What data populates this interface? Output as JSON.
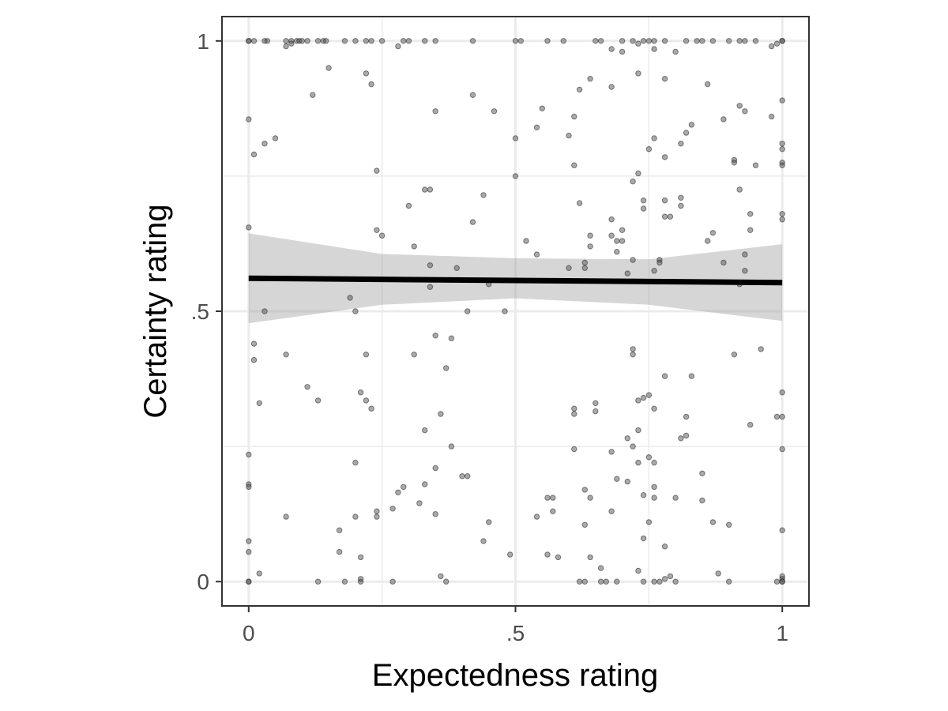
{
  "chart_data": {
    "type": "scatter",
    "title": "",
    "xlabel": "Expectedness rating",
    "ylabel": "Certainty rating",
    "xlim": [
      -0.05,
      1.05
    ],
    "ylim": [
      -0.045,
      1.045
    ],
    "grid": true,
    "x_ticks": [
      {
        "value": 0,
        "label": "0"
      },
      {
        "value": 0.5,
        "label": ".5"
      },
      {
        "value": 1,
        "label": "1"
      }
    ],
    "y_ticks": [
      {
        "value": 0,
        "label": "0"
      },
      {
        "value": 0.5,
        "label": ".5"
      },
      {
        "value": 1,
        "label": "1"
      }
    ],
    "minor_gridlines": {
      "x": [
        0.25,
        0.75
      ],
      "y": [
        0.25,
        0.75
      ]
    },
    "colors": {
      "points": "#555555",
      "trend": "#000000",
      "band": "#999999",
      "grid": "#ebebeb"
    },
    "trend_line": {
      "x": [
        0,
        1
      ],
      "y": [
        0.561,
        0.553
      ]
    },
    "confidence_band": {
      "x": [
        0,
        0.25,
        0.5,
        0.75,
        1
      ],
      "lower": [
        0.478,
        0.512,
        0.524,
        0.512,
        0.482
      ],
      "upper": [
        0.644,
        0.606,
        0.598,
        0.596,
        0.624
      ]
    },
    "points": [
      [
        0,
        1
      ],
      [
        0,
        1
      ],
      [
        0.01,
        1
      ],
      [
        0.03,
        1
      ],
      [
        0.035,
        1
      ],
      [
        0.07,
        1
      ],
      [
        0.08,
        1
      ],
      [
        0.09,
        1
      ],
      [
        0.095,
        1
      ],
      [
        0.1,
        1
      ],
      [
        0.11,
        1
      ],
      [
        0.13,
        1
      ],
      [
        0.14,
        1
      ],
      [
        0.145,
        1
      ],
      [
        0.18,
        1
      ],
      [
        0.2,
        1
      ],
      [
        0.22,
        1
      ],
      [
        0.23,
        1
      ],
      [
        0.25,
        1
      ],
      [
        0.29,
        1
      ],
      [
        0.3,
        1
      ],
      [
        0.33,
        1
      ],
      [
        0.35,
        1
      ],
      [
        0.42,
        1
      ],
      [
        0.5,
        1
      ],
      [
        0.51,
        1
      ],
      [
        0.56,
        1
      ],
      [
        0.59,
        1
      ],
      [
        0.65,
        1
      ],
      [
        0.66,
        1
      ],
      [
        0.7,
        1
      ],
      [
        0.72,
        1
      ],
      [
        0.73,
        0.995
      ],
      [
        0.74,
        1
      ],
      [
        0.75,
        1
      ],
      [
        0.76,
        1
      ],
      [
        0.78,
        1
      ],
      [
        0.82,
        1
      ],
      [
        0.84,
        1
      ],
      [
        0.85,
        1
      ],
      [
        0.87,
        1
      ],
      [
        0.9,
        1
      ],
      [
        0.92,
        1
      ],
      [
        0.93,
        1
      ],
      [
        0.95,
        1
      ],
      [
        0.98,
        0.99
      ],
      [
        1,
        1
      ],
      [
        1,
        1
      ],
      [
        0.07,
        0.99
      ],
      [
        0.08,
        0.995
      ],
      [
        0.28,
        0.99
      ],
      [
        0.68,
        0.985
      ],
      [
        0.7,
        0.98
      ],
      [
        0.76,
        0.985
      ],
      [
        0.8,
        0.98
      ],
      [
        0.99,
        0.995
      ],
      [
        0.15,
        0.95
      ],
      [
        0.22,
        0.94
      ],
      [
        0.23,
        0.92
      ],
      [
        0.12,
        0.9
      ],
      [
        0.73,
        0.94
      ],
      [
        0.78,
        0.93
      ],
      [
        0.64,
        0.93
      ],
      [
        0.62,
        0.91
      ],
      [
        0.68,
        0.915
      ],
      [
        0.86,
        0.92
      ],
      [
        0.42,
        0.9
      ],
      [
        0.35,
        0.87
      ],
      [
        0.46,
        0.87
      ],
      [
        0.55,
        0.875
      ],
      [
        0.61,
        0.86
      ],
      [
        0.0,
        0.855
      ],
      [
        0.89,
        0.855
      ],
      [
        0.92,
        0.88
      ],
      [
        0.93,
        0.87
      ],
      [
        0.98,
        0.86
      ],
      [
        1,
        0.89
      ],
      [
        0.54,
        0.84
      ],
      [
        0.83,
        0.845
      ],
      [
        0.82,
        0.83
      ],
      [
        0.6,
        0.825
      ],
      [
        0.5,
        0.82
      ],
      [
        0.05,
        0.82
      ],
      [
        0.03,
        0.81
      ],
      [
        0.76,
        0.82
      ],
      [
        0.81,
        0.81
      ],
      [
        1,
        0.81
      ],
      [
        1,
        0.8
      ],
      [
        0.01,
        0.79
      ],
      [
        0.75,
        0.8
      ],
      [
        0.78,
        0.785
      ],
      [
        0.91,
        0.78
      ],
      [
        0.91,
        0.775
      ],
      [
        0.61,
        0.77
      ],
      [
        0.95,
        0.77
      ],
      [
        1,
        0.775
      ],
      [
        1,
        0.77
      ],
      [
        0.24,
        0.76
      ],
      [
        0.73,
        0.755
      ],
      [
        0.72,
        0.74
      ],
      [
        0.5,
        0.75
      ],
      [
        0.33,
        0.725
      ],
      [
        0.34,
        0.725
      ],
      [
        0.92,
        0.725
      ],
      [
        0.44,
        0.715
      ],
      [
        0.62,
        0.7
      ],
      [
        0.74,
        0.705
      ],
      [
        0.74,
        0.69
      ],
      [
        0.78,
        0.705
      ],
      [
        0.81,
        0.71
      ],
      [
        0.3,
        0.695
      ],
      [
        0.81,
        0.695
      ],
      [
        0.78,
        0.675
      ],
      [
        0.79,
        0.675
      ],
      [
        0.94,
        0.68
      ],
      [
        1,
        0.68
      ],
      [
        1,
        0.67
      ],
      [
        0.42,
        0.665
      ],
      [
        0.68,
        0.67
      ],
      [
        0.0,
        0.655
      ],
      [
        0.24,
        0.65
      ],
      [
        0.25,
        0.64
      ],
      [
        0.7,
        0.65
      ],
      [
        0.87,
        0.645
      ],
      [
        0.94,
        0.65
      ],
      [
        0.64,
        0.64
      ],
      [
        0.68,
        0.64
      ],
      [
        0.69,
        0.63
      ],
      [
        0.7,
        0.63
      ],
      [
        0.86,
        0.63
      ],
      [
        0.52,
        0.63
      ],
      [
        0.64,
        0.62
      ],
      [
        0.31,
        0.62
      ],
      [
        0.54,
        0.605
      ],
      [
        0.69,
        0.61
      ],
      [
        0.93,
        0.605
      ],
      [
        0.72,
        0.595
      ],
      [
        0.63,
        0.59
      ],
      [
        0.77,
        0.595
      ],
      [
        0.77,
        0.59
      ],
      [
        0.89,
        0.59
      ],
      [
        0.34,
        0.585
      ],
      [
        0.39,
        0.58
      ],
      [
        0.6,
        0.58
      ],
      [
        0.63,
        0.58
      ],
      [
        0.71,
        0.57
      ],
      [
        0.76,
        0.575
      ],
      [
        0.93,
        0.575
      ],
      [
        0.34,
        0.545
      ],
      [
        0.45,
        0.55
      ],
      [
        0.92,
        0.55
      ],
      [
        0.19,
        0.525
      ],
      [
        0.2,
        0.5
      ],
      [
        0.03,
        0.5
      ],
      [
        0.41,
        0.5
      ],
      [
        0.48,
        0.5
      ],
      [
        0.35,
        0.455
      ],
      [
        0.38,
        0.45
      ],
      [
        0.01,
        0.44
      ],
      [
        0.72,
        0.43
      ],
      [
        0.72,
        0.42
      ],
      [
        0.96,
        0.43
      ],
      [
        0.07,
        0.42
      ],
      [
        0.22,
        0.42
      ],
      [
        0.31,
        0.42
      ],
      [
        0.91,
        0.42
      ],
      [
        0.01,
        0.41
      ],
      [
        0.37,
        0.395
      ],
      [
        0.78,
        0.38
      ],
      [
        0.83,
        0.38
      ],
      [
        0.11,
        0.36
      ],
      [
        0.21,
        0.35
      ],
      [
        1,
        0.35
      ],
      [
        0.13,
        0.335
      ],
      [
        0.22,
        0.335
      ],
      [
        0.02,
        0.33
      ],
      [
        0.75,
        0.345
      ],
      [
        0.74,
        0.34
      ],
      [
        0.73,
        0.335
      ],
      [
        0.65,
        0.33
      ],
      [
        0.76,
        0.32
      ],
      [
        0.61,
        0.32
      ],
      [
        0.23,
        0.32
      ],
      [
        0.61,
        0.31
      ],
      [
        0.36,
        0.31
      ],
      [
        0.65,
        0.315
      ],
      [
        0.82,
        0.305
      ],
      [
        0.99,
        0.305
      ],
      [
        1,
        0.305
      ],
      [
        0.94,
        0.29
      ],
      [
        0.33,
        0.28
      ],
      [
        0.73,
        0.28
      ],
      [
        0.71,
        0.265
      ],
      [
        0.82,
        0.27
      ],
      [
        0.81,
        0.265
      ],
      [
        0.72,
        0.25
      ],
      [
        0.38,
        0.25
      ],
      [
        0.61,
        0.245
      ],
      [
        0.68,
        0.24
      ],
      [
        1,
        0.245
      ],
      [
        0,
        0.235
      ],
      [
        0.75,
        0.23
      ],
      [
        0.76,
        0.22
      ],
      [
        0.2,
        0.22
      ],
      [
        0.73,
        0.22
      ],
      [
        0.35,
        0.21
      ],
      [
        0.85,
        0.2
      ],
      [
        0.69,
        0.19
      ],
      [
        0.41,
        0.195
      ],
      [
        0.4,
        0.195
      ],
      [
        0,
        0.18
      ],
      [
        0,
        0.175
      ],
      [
        0.71,
        0.185
      ],
      [
        0.33,
        0.18
      ],
      [
        0.29,
        0.175
      ],
      [
        0.76,
        0.175
      ],
      [
        0.28,
        0.165
      ],
      [
        0.63,
        0.17
      ],
      [
        0.74,
        0.16
      ],
      [
        0.8,
        0.155
      ],
      [
        0.56,
        0.155
      ],
      [
        0.57,
        0.155
      ],
      [
        0.64,
        0.155
      ],
      [
        0.76,
        0.155
      ],
      [
        0.85,
        0.15
      ],
      [
        0.32,
        0.145
      ],
      [
        0.27,
        0.135
      ],
      [
        0.68,
        0.13
      ],
      [
        0.57,
        0.13
      ],
      [
        0.24,
        0.13
      ],
      [
        0.24,
        0.12
      ],
      [
        0.35,
        0.125
      ],
      [
        0.2,
        0.12
      ],
      [
        0.07,
        0.12
      ],
      [
        0.54,
        0.12
      ],
      [
        0.87,
        0.11
      ],
      [
        0.9,
        0.105
      ],
      [
        0.45,
        0.11
      ],
      [
        0.63,
        0.105
      ],
      [
        0.75,
        0.11
      ],
      [
        1,
        0.095
      ],
      [
        0.17,
        0.095
      ],
      [
        0.74,
        0.08
      ],
      [
        0,
        0.075
      ],
      [
        0.44,
        0.075
      ],
      [
        0.78,
        0.065
      ],
      [
        0,
        0.055
      ],
      [
        0.17,
        0.055
      ],
      [
        0.21,
        0.045
      ],
      [
        0.49,
        0.05
      ],
      [
        0.56,
        0.05
      ],
      [
        0.58,
        0.045
      ],
      [
        0.64,
        0.045
      ],
      [
        0.66,
        0.025
      ],
      [
        0.73,
        0.02
      ],
      [
        0.02,
        0.015
      ],
      [
        0.36,
        0.01
      ],
      [
        0.88,
        0.015
      ],
      [
        0.79,
        0.01
      ],
      [
        1,
        0.01
      ],
      [
        1,
        0.005
      ],
      [
        0.78,
        0.005
      ],
      [
        0,
        0
      ],
      [
        0,
        0
      ],
      [
        0.13,
        0
      ],
      [
        0.18,
        0
      ],
      [
        0.21,
        0
      ],
      [
        0.21,
        0.005
      ],
      [
        0.27,
        0
      ],
      [
        0.37,
        0
      ],
      [
        0.62,
        0
      ],
      [
        0.63,
        0
      ],
      [
        0.66,
        0
      ],
      [
        0.67,
        0
      ],
      [
        0.69,
        0
      ],
      [
        0.74,
        0
      ],
      [
        0.76,
        0
      ],
      [
        0.77,
        0
      ],
      [
        0.8,
        0
      ],
      [
        0.9,
        0
      ],
      [
        0.99,
        0
      ],
      [
        1,
        0
      ],
      [
        1,
        0
      ]
    ]
  }
}
